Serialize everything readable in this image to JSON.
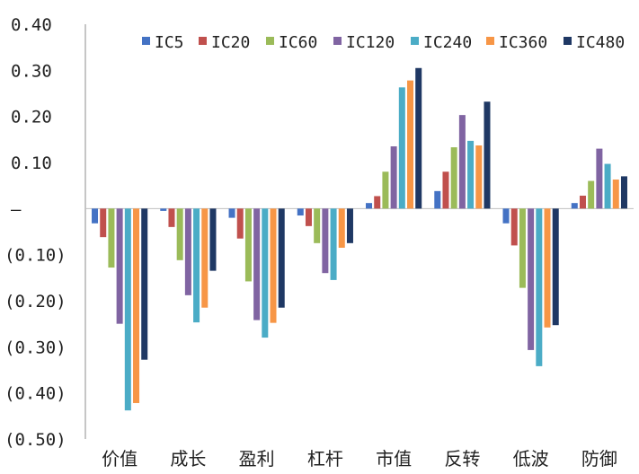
{
  "chart_data": {
    "type": "bar",
    "categories": [
      "价值",
      "成长",
      "盈利",
      "杠杆",
      "市值",
      "反转",
      "低波",
      "防御"
    ],
    "series": [
      {
        "name": "IC5",
        "color": "#4472C4",
        "values": [
          -0.032,
          -0.005,
          -0.02,
          -0.015,
          0.012,
          0.038,
          -0.032,
          0.012
        ]
      },
      {
        "name": "IC20",
        "color": "#C0504D",
        "values": [
          -0.062,
          -0.04,
          -0.065,
          -0.038,
          0.027,
          0.08,
          -0.08,
          0.028
        ]
      },
      {
        "name": "IC60",
        "color": "#9BBB59",
        "values": [
          -0.128,
          -0.112,
          -0.158,
          -0.075,
          0.08,
          0.133,
          -0.172,
          0.06
        ]
      },
      {
        "name": "IC120",
        "color": "#8064A2",
        "values": [
          -0.25,
          -0.188,
          -0.242,
          -0.14,
          0.135,
          0.203,
          -0.307,
          0.13
        ]
      },
      {
        "name": "IC240",
        "color": "#4BACC6",
        "values": [
          -0.438,
          -0.247,
          -0.28,
          -0.155,
          0.263,
          0.147,
          -0.342,
          0.097
        ]
      },
      {
        "name": "IC360",
        "color": "#F79646",
        "values": [
          -0.422,
          -0.215,
          -0.248,
          -0.085,
          0.278,
          0.137,
          -0.258,
          0.063
        ]
      },
      {
        "name": "IC480",
        "color": "#1F3864",
        "values": [
          -0.328,
          -0.135,
          -0.215,
          -0.075,
          0.305,
          0.232,
          -0.253,
          0.07
        ]
      }
    ],
    "ylim": [
      -0.5,
      0.4
    ],
    "yticks": [
      {
        "value": 0.4,
        "label": "0.40"
      },
      {
        "value": 0.3,
        "label": "0.30"
      },
      {
        "value": 0.2,
        "label": "0.20"
      },
      {
        "value": 0.1,
        "label": "0.10"
      },
      {
        "value": 0.0,
        "label": "–"
      },
      {
        "value": -0.1,
        "label": "(0.10)"
      },
      {
        "value": -0.2,
        "label": "(0.20)"
      },
      {
        "value": -0.3,
        "label": "(0.30)"
      },
      {
        "value": -0.4,
        "label": "(0.40)"
      },
      {
        "value": -0.5,
        "label": "(0.50)"
      }
    ],
    "title": "",
    "xlabel": "",
    "ylabel": "",
    "grid": false,
    "legend": "top-right"
  }
}
